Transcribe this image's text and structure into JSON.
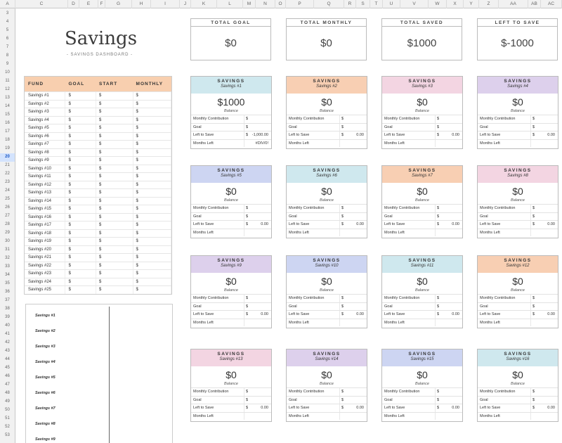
{
  "columns": [
    "A",
    "C",
    "D",
    "E",
    "F",
    "G",
    "H",
    "I",
    "J",
    "K",
    "L",
    "M",
    "N",
    "O",
    "P",
    "Q",
    "R",
    "S",
    "T",
    "U",
    "V",
    "W",
    "X",
    "Y",
    "Z",
    "AA",
    "AB",
    "AC"
  ],
  "rows": [
    "3",
    "4",
    "5",
    "6",
    "7",
    "8",
    "9",
    "10",
    "11",
    "12",
    "13",
    "14",
    "15",
    "16",
    "17",
    "18",
    "19",
    "20",
    "21",
    "22",
    "23",
    "24",
    "25",
    "26",
    "27",
    "28",
    "29",
    "30",
    "31",
    "32",
    "33",
    "34",
    "35",
    "36",
    "37",
    "38",
    "39",
    "40",
    "41",
    "42",
    "43",
    "44",
    "45",
    "46",
    "47",
    "48",
    "49",
    "50",
    "51",
    "52",
    "53"
  ],
  "selected_row": "20",
  "title": "Savings",
  "subtitle": "- SAVINGS DASHBOARD -",
  "summary": [
    {
      "label": "TOTAL GOAL",
      "value": "$0"
    },
    {
      "label": "TOTAL MONTHLY",
      "value": "$0"
    },
    {
      "label": "TOTAL SAVED",
      "value": "$1000"
    },
    {
      "label": "LEFT TO SAVE",
      "value": "$-1000"
    }
  ],
  "fund_table": {
    "headers": [
      "FUND",
      "GOAL",
      "START",
      "MONTHLY"
    ],
    "currency": "$",
    "rows": [
      "Savings #1",
      "Savings #2",
      "Savings #3",
      "Savings #4",
      "Savings #5",
      "Savings #6",
      "Savings #7",
      "Savings #8",
      "Savings #9",
      "Savings #10",
      "Savings #11",
      "Savings #12",
      "Savings #13",
      "Savings #14",
      "Savings #15",
      "Savings #16",
      "Savings #17",
      "Savings #18",
      "Savings #19",
      "Savings #20",
      "Savings #21",
      "Savings #22",
      "Savings #23",
      "Savings #24",
      "Savings #25"
    ]
  },
  "chart_labels": [
    "Savings #1",
    "Savings #2",
    "Savings #3",
    "Savings #4",
    "Savings #5",
    "Savings #6",
    "Savings #7",
    "Savings #8",
    "Savings #9"
  ],
  "card_labels": {
    "title": "SAVINGS",
    "balance": "Balance",
    "monthly": "Monthly Contribution",
    "goal": "Goal",
    "left": "Left to Save",
    "months": "Months Left",
    "currency": "$"
  },
  "cards": [
    {
      "sub": "Savings #1",
      "balance": "$1000",
      "left": "-1,000.00",
      "months": "#DIV/0!",
      "color": "#cfe8ee"
    },
    {
      "sub": "Savings #2",
      "balance": "$0",
      "left": "0.00",
      "months": "",
      "color": "#f8cfb3"
    },
    {
      "sub": "Savings #3",
      "balance": "$0",
      "left": "0.00",
      "months": "",
      "color": "#f3d5e2"
    },
    {
      "sub": "Savings #4",
      "balance": "$0",
      "left": "0.00",
      "months": "",
      "color": "#ddd0ec"
    },
    {
      "sub": "Savings #5",
      "balance": "$0",
      "left": "0.00",
      "months": "",
      "color": "#cdd5f2"
    },
    {
      "sub": "Savings #6",
      "balance": "$0",
      "left": "0.00",
      "months": "",
      "color": "#cfe8ee"
    },
    {
      "sub": "Savings #7",
      "balance": "$0",
      "left": "0.00",
      "months": "",
      "color": "#f8cfb3"
    },
    {
      "sub": "Savings #8",
      "balance": "$0",
      "left": "0.00",
      "months": "",
      "color": "#f3d5e2"
    },
    {
      "sub": "Savings #9",
      "balance": "$0",
      "left": "0.00",
      "months": "",
      "color": "#ddd0ec"
    },
    {
      "sub": "Savings #10",
      "balance": "$0",
      "left": "0.00",
      "months": "",
      "color": "#cdd5f2"
    },
    {
      "sub": "Savings #11",
      "balance": "$0",
      "left": "0.00",
      "months": "",
      "color": "#cfe8ee"
    },
    {
      "sub": "Savings #12",
      "balance": "$0",
      "left": "0.00",
      "months": "",
      "color": "#f8cfb3"
    },
    {
      "sub": "Savings #13",
      "balance": "$0",
      "left": "0.00",
      "months": "",
      "color": "#f3d5e2"
    },
    {
      "sub": "Savings #14",
      "balance": "$0",
      "left": "0.00",
      "months": "",
      "color": "#ddd0ec"
    },
    {
      "sub": "Savings #15",
      "balance": "$0",
      "left": "0.00",
      "months": "",
      "color": "#cdd5f2"
    },
    {
      "sub": "Savings #16",
      "balance": "$0",
      "left": "0.00",
      "months": "",
      "color": "#cfe8ee"
    }
  ]
}
